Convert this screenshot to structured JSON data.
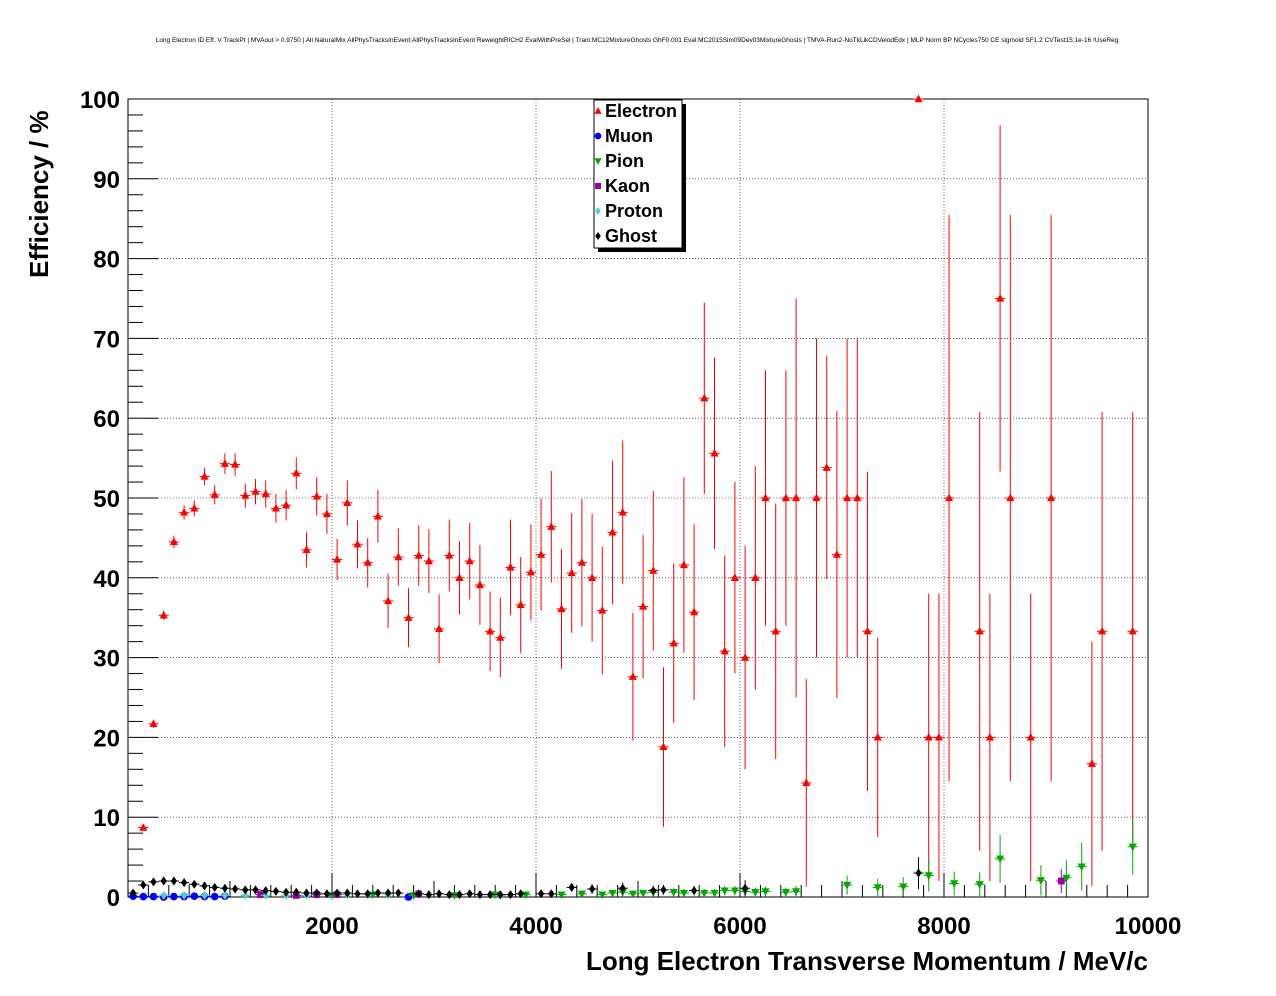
{
  "chart_data": {
    "type": "scatter",
    "title": "Long Electron ID Eff. V TrackPt | MVAout > 0.9750 | All NaturalMix AllPhysTracksInEvent:AllPhysTracksInEvent ReweightRICH2 EvalWithPreSel | Train:MC12MixtureGhosts GhF0.001 Eval:MC2015Sim09Dev03MixtureGhosts | TMVA-Run2-NoTkLikCDVelodEdx | MLP Norm BP NCycles750 CE sigmoid SF1.2 CVTest15:1e-16 !UseReg",
    "xlabel": "Long Electron Transverse Momentum / MeV/c",
    "ylabel": "Efficiency / %",
    "xlim": [
      0,
      10000
    ],
    "ylim": [
      0,
      100
    ],
    "xticks": [
      2000,
      4000,
      6000,
      8000,
      10000
    ],
    "yticks": [
      0,
      10,
      20,
      30,
      40,
      50,
      60,
      70,
      80,
      90,
      100
    ],
    "grid": true,
    "legend_position": "top-center",
    "series": [
      {
        "name": "Electron",
        "color": "#ff0000",
        "marker": "triangle-up",
        "points": [
          [
            150,
            8.7,
            0.4
          ],
          [
            250,
            21.7,
            0.5
          ],
          [
            350,
            35.3,
            0.6
          ],
          [
            450,
            44.5,
            0.8
          ],
          [
            550,
            48.2,
            0.9
          ],
          [
            650,
            48.7,
            1.0
          ],
          [
            750,
            52.7,
            1.1
          ],
          [
            850,
            50.4,
            1.2
          ],
          [
            950,
            54.3,
            1.3
          ],
          [
            1050,
            54.2,
            1.4
          ],
          [
            1150,
            50.3,
            1.5
          ],
          [
            1250,
            50.8,
            1.6
          ],
          [
            1350,
            50.5,
            1.7
          ],
          [
            1450,
            48.7,
            1.8
          ],
          [
            1550,
            49.1,
            1.9
          ],
          [
            1650,
            53.1,
            2.0
          ],
          [
            1750,
            43.5,
            2.2
          ],
          [
            1850,
            50.2,
            2.4
          ],
          [
            1950,
            48.0,
            2.5
          ],
          [
            2050,
            42.3,
            2.6
          ],
          [
            2150,
            49.4,
            2.8
          ],
          [
            2250,
            44.2,
            3.0
          ],
          [
            2350,
            41.9,
            3.1
          ],
          [
            2450,
            47.7,
            3.3
          ],
          [
            2550,
            37.1,
            3.4
          ],
          [
            2650,
            42.6,
            3.6
          ],
          [
            2750,
            35.0,
            3.7
          ],
          [
            2850,
            42.8,
            3.8
          ],
          [
            2950,
            42.1,
            4.0
          ],
          [
            3050,
            33.6,
            4.3
          ],
          [
            3150,
            42.8,
            4.5
          ],
          [
            3250,
            40.0,
            4.6
          ],
          [
            3350,
            42.1,
            4.8
          ],
          [
            3450,
            39.1,
            5.0
          ],
          [
            3550,
            33.3,
            5.0
          ],
          [
            3650,
            32.5,
            5.0
          ],
          [
            3750,
            41.3,
            6.0
          ],
          [
            3850,
            36.6,
            6.0
          ],
          [
            3950,
            40.7,
            6.0
          ],
          [
            4050,
            42.9,
            7.0
          ],
          [
            4150,
            46.4,
            7.0
          ],
          [
            4250,
            36.1,
            7.5
          ],
          [
            4350,
            40.6,
            7.5
          ],
          [
            4450,
            41.9,
            8.0
          ],
          [
            4550,
            40.0,
            8.0
          ],
          [
            4650,
            35.9,
            8.0
          ],
          [
            4750,
            45.7,
            9.0
          ],
          [
            4850,
            48.2,
            9.0
          ],
          [
            4950,
            27.6,
            8.0
          ],
          [
            5050,
            36.4,
            9.0
          ],
          [
            5150,
            40.9,
            10.0
          ],
          [
            5250,
            18.8,
            10.0
          ],
          [
            5350,
            31.8,
            10.0
          ],
          [
            5450,
            41.6,
            11.0
          ],
          [
            5550,
            35.7,
            11.0
          ],
          [
            5650,
            62.5,
            12.0
          ],
          [
            5750,
            55.6,
            12.0
          ],
          [
            5850,
            30.8,
            12.0
          ],
          [
            5950,
            40.0,
            12.0
          ],
          [
            6050,
            30.0,
            14.0
          ],
          [
            6150,
            40.0,
            14.0
          ],
          [
            6250,
            50.0,
            16.0
          ],
          [
            6350,
            33.3,
            16.0
          ],
          [
            6450,
            50.0,
            16.0
          ],
          [
            6550,
            50.0,
            25.0
          ],
          [
            6650,
            14.3,
            13.0
          ],
          [
            6750,
            50.0,
            20.0
          ],
          [
            6850,
            53.8,
            14.0
          ],
          [
            6950,
            42.9,
            18.0
          ],
          [
            7050,
            50.0,
            20.0
          ],
          [
            7150,
            50.0,
            20.0
          ],
          [
            7250,
            33.3,
            20.0
          ],
          [
            7350,
            20.0,
            12.5
          ],
          [
            7750,
            100.0,
            0.0
          ],
          [
            7850,
            20.0,
            18.0
          ],
          [
            7950,
            20.0,
            18.0
          ],
          [
            8050,
            50.0,
            35.5
          ],
          [
            8350,
            33.3,
            27.5
          ],
          [
            8450,
            20.0,
            18.0
          ],
          [
            8550,
            75.0,
            21.7
          ],
          [
            8650,
            50.0,
            35.5
          ],
          [
            8850,
            20.0,
            18.0
          ],
          [
            9050,
            50.0,
            35.5
          ],
          [
            9450,
            16.7,
            15.3
          ],
          [
            9550,
            33.3,
            27.5
          ],
          [
            9850,
            33.3,
            27.5
          ]
        ]
      },
      {
        "name": "Muon",
        "color": "#0000ff",
        "marker": "circle",
        "points": [
          [
            50,
            0.1,
            0.1
          ],
          [
            150,
            0.05,
            0.05
          ],
          [
            250,
            0.05,
            0.05
          ],
          [
            350,
            0.0,
            0.0
          ],
          [
            450,
            0.05,
            0.05
          ],
          [
            550,
            0.05,
            0.05
          ],
          [
            650,
            0.1,
            0.1
          ],
          [
            750,
            0.05,
            0.05
          ],
          [
            850,
            0.05,
            0.05
          ],
          [
            950,
            0.1,
            0.1
          ],
          [
            2750,
            0.0,
            0.0
          ]
        ]
      },
      {
        "name": "Pion",
        "color": "#00aa00",
        "marker": "triangle-down",
        "points": [
          [
            4250,
            0.3,
            0.3
          ],
          [
            4450,
            0.4,
            0.4
          ],
          [
            4650,
            0.3,
            0.3
          ],
          [
            4750,
            0.5,
            0.4
          ],
          [
            4850,
            0.6,
            0.5
          ],
          [
            4950,
            0.4,
            0.4
          ],
          [
            5050,
            0.5,
            0.4
          ],
          [
            5150,
            0.6,
            0.5
          ],
          [
            5350,
            0.6,
            0.5
          ],
          [
            5450,
            0.5,
            0.5
          ],
          [
            5650,
            0.5,
            0.5
          ],
          [
            5750,
            0.5,
            0.5
          ],
          [
            5850,
            0.8,
            0.6
          ],
          [
            5950,
            0.8,
            0.6
          ],
          [
            6050,
            0.7,
            0.6
          ],
          [
            6150,
            0.6,
            0.6
          ],
          [
            6250,
            0.7,
            0.6
          ],
          [
            6450,
            0.6,
            0.6
          ],
          [
            6550,
            0.7,
            0.7
          ],
          [
            7050,
            1.5,
            1.2
          ],
          [
            7350,
            1.2,
            1.1
          ],
          [
            7600,
            1.3,
            1.2
          ],
          [
            7850,
            2.7,
            2.0
          ],
          [
            8100,
            1.7,
            1.5
          ],
          [
            8350,
            1.6,
            1.5
          ],
          [
            8550,
            4.8,
            3.0
          ],
          [
            8950,
            2.1,
            1.9
          ],
          [
            9200,
            2.4,
            2.2
          ],
          [
            9350,
            3.8,
            3.0
          ],
          [
            9850,
            6.3,
            3.5
          ],
          [
            2000,
            0.2,
            0.2
          ],
          [
            2400,
            0.3,
            0.2
          ],
          [
            2800,
            0.2,
            0.2
          ],
          [
            3200,
            0.2,
            0.2
          ],
          [
            3600,
            0.3,
            0.2
          ],
          [
            3900,
            0.3,
            0.2
          ]
        ]
      },
      {
        "name": "Kaon",
        "color": "#9900aa",
        "marker": "square",
        "points": [
          [
            1300,
            0.3,
            0.2
          ],
          [
            1650,
            0.2,
            0.2
          ],
          [
            1850,
            0.3,
            0.2
          ],
          [
            2050,
            0.3,
            0.2
          ],
          [
            2850,
            0.4,
            0.3
          ],
          [
            9150,
            2.0,
            1.5
          ]
        ]
      },
      {
        "name": "Proton",
        "color": "#55cccc",
        "marker": "diamond",
        "points": [
          [
            350,
            0.2,
            0.1
          ],
          [
            550,
            0.2,
            0.1
          ],
          [
            750,
            0.2,
            0.1
          ],
          [
            950,
            0.2,
            0.1
          ],
          [
            1150,
            0.2,
            0.1
          ],
          [
            1350,
            0.2,
            0.1
          ],
          [
            1550,
            0.2,
            0.1
          ],
          [
            1750,
            0.2,
            0.1
          ],
          [
            2150,
            0.3,
            0.2
          ],
          [
            2350,
            0.3,
            0.2
          ],
          [
            2550,
            0.3,
            0.2
          ],
          [
            3650,
            0.2,
            0.2
          ]
        ]
      },
      {
        "name": "Ghost",
        "color": "#000000",
        "marker": "diamond",
        "points": [
          [
            50,
            0.5,
            0.2
          ],
          [
            150,
            1.5,
            0.2
          ],
          [
            250,
            1.9,
            0.2
          ],
          [
            350,
            2.0,
            0.2
          ],
          [
            450,
            2.0,
            0.2
          ],
          [
            550,
            1.8,
            0.2
          ],
          [
            650,
            1.6,
            0.2
          ],
          [
            750,
            1.4,
            0.2
          ],
          [
            850,
            1.2,
            0.2
          ],
          [
            950,
            1.1,
            0.2
          ],
          [
            1050,
            1.0,
            0.2
          ],
          [
            1150,
            0.9,
            0.2
          ],
          [
            1250,
            0.9,
            0.2
          ],
          [
            1350,
            0.8,
            0.2
          ],
          [
            1450,
            0.7,
            0.2
          ],
          [
            1550,
            0.6,
            0.2
          ],
          [
            1650,
            0.6,
            0.2
          ],
          [
            1750,
            0.5,
            0.2
          ],
          [
            1850,
            0.5,
            0.2
          ],
          [
            1950,
            0.4,
            0.2
          ],
          [
            2050,
            0.5,
            0.2
          ],
          [
            2150,
            0.5,
            0.2
          ],
          [
            2250,
            0.4,
            0.2
          ],
          [
            2350,
            0.4,
            0.2
          ],
          [
            2450,
            0.5,
            0.2
          ],
          [
            2550,
            0.5,
            0.2
          ],
          [
            2650,
            0.5,
            0.2
          ],
          [
            2850,
            0.4,
            0.2
          ],
          [
            2950,
            0.3,
            0.2
          ],
          [
            3050,
            0.4,
            0.2
          ],
          [
            3150,
            0.3,
            0.2
          ],
          [
            3250,
            0.3,
            0.2
          ],
          [
            3350,
            0.4,
            0.2
          ],
          [
            3450,
            0.3,
            0.2
          ],
          [
            3550,
            0.3,
            0.2
          ],
          [
            3650,
            0.3,
            0.2
          ],
          [
            3750,
            0.3,
            0.2
          ],
          [
            3850,
            0.4,
            0.2
          ],
          [
            4050,
            0.4,
            0.3
          ],
          [
            4150,
            0.4,
            0.3
          ],
          [
            4350,
            1.2,
            0.5
          ],
          [
            4550,
            1.0,
            0.6
          ],
          [
            4850,
            1.1,
            0.7
          ],
          [
            5150,
            0.8,
            0.6
          ],
          [
            5250,
            0.9,
            0.6
          ],
          [
            5550,
            0.8,
            0.6
          ],
          [
            6050,
            1.1,
            1.0
          ],
          [
            7750,
            3.0,
            2.0
          ]
        ]
      }
    ]
  }
}
